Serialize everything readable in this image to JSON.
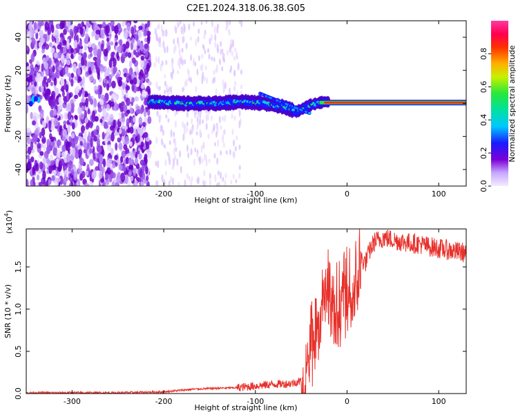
{
  "title": "C2E1.2024.318.06.38.G05",
  "chart_data": [
    {
      "type": "heatmap",
      "xlabel": "Height of straight line (km)",
      "ylabel": "Frequency (Hz)",
      "xlim": [
        -350,
        130
      ],
      "ylim": [
        -50,
        50
      ],
      "xticks": [
        -300,
        -200,
        -100,
        0,
        100
      ],
      "yticks": [
        -40,
        -20,
        0,
        20,
        40
      ],
      "colorbar": {
        "label": "Normalized spectral amplitude",
        "range": [
          0.0,
          1.0
        ],
        "ticks": [
          "0.0",
          "0.2",
          "0.4",
          "0.6",
          "0.8"
        ],
        "colors": [
          "#f0e6ff",
          "#7b00d6",
          "#1a1aff",
          "#00c8ff",
          "#27e83a",
          "#f5f500",
          "#ff8a00",
          "#ff0000",
          "#ff2a8c"
        ]
      },
      "signal_track": {
        "description_points_x": [
          -215,
          -180,
          -140,
          -115,
          -90,
          -70,
          -55,
          -40,
          -25,
          0,
          50,
          130
        ],
        "frequency_hz": [
          1,
          0,
          0,
          1,
          0,
          -2,
          -5,
          -1,
          1,
          0.5,
          0.5,
          0.5
        ]
      },
      "noise_region_x": [
        -350,
        -120
      ]
    },
    {
      "type": "line",
      "xlabel": "Height of straight line (km)",
      "ylabel": "SNR (10 * v/v)",
      "y_multiplier_label": "(x10",
      "y_multiplier_exp": "4",
      "y_multiplier_close": ")",
      "xlim": [
        -350,
        130
      ],
      "ylim": [
        0.0,
        1.95
      ],
      "xticks": [
        -300,
        -200,
        -100,
        0,
        100
      ],
      "yticks": [
        "0.0",
        "0.5",
        "1.0",
        "1.5"
      ],
      "line_color": "#e8302a",
      "series": [
        {
          "x": [
            -350,
            -300,
            -250,
            -200,
            -170,
            -150,
            -120,
            -100,
            -80,
            -60,
            -50,
            -45,
            -40,
            -35,
            -30,
            -25,
            -20,
            -15,
            -10,
            -5,
            0,
            5,
            10,
            15,
            20,
            25,
            30,
            35,
            40,
            50,
            60,
            70,
            80,
            90,
            100,
            110,
            120,
            130
          ],
          "values": [
            0.01,
            0.01,
            0.01,
            0.02,
            0.05,
            0.06,
            0.07,
            0.09,
            0.11,
            0.12,
            0.15,
            0.35,
            0.6,
            0.85,
            1.05,
            1.25,
            1.35,
            1.2,
            1.15,
            1.2,
            1.3,
            1.25,
            1.5,
            1.6,
            1.55,
            1.7,
            1.8,
            1.82,
            1.85,
            1.82,
            1.8,
            1.78,
            1.77,
            1.74,
            1.72,
            1.7,
            1.68,
            1.67
          ]
        }
      ]
    }
  ]
}
